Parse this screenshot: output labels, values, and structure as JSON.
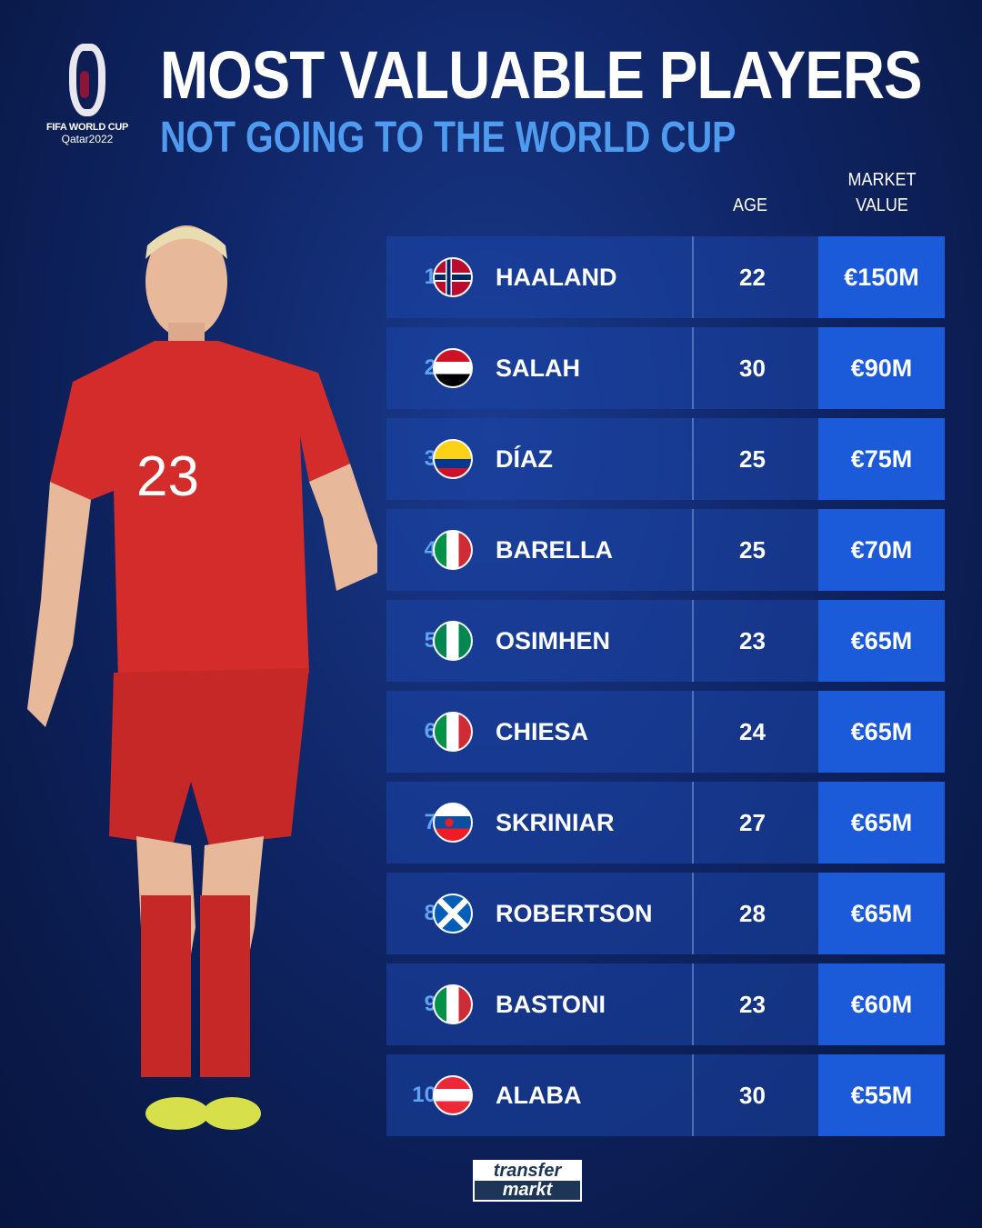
{
  "logo": {
    "line1": "FIFA WORLD CUP",
    "line2": "Qatar2022"
  },
  "title": "MOST VALUABLE PLAYERS",
  "subtitle": "NOT GOING TO THE WORLD CUP",
  "headers": {
    "age": "AGE",
    "market_value_1": "MARKET",
    "market_value_2": "VALUE"
  },
  "rows": [
    {
      "rank": "1",
      "flag": "norway-flag-icon",
      "name": "HAALAND",
      "age": "22",
      "value": "€150M"
    },
    {
      "rank": "2",
      "flag": "egypt-flag-icon",
      "name": "SALAH",
      "age": "30",
      "value": "€90M"
    },
    {
      "rank": "3",
      "flag": "colombia-flag-icon",
      "name": "DÍAZ",
      "age": "25",
      "value": "€75M"
    },
    {
      "rank": "4",
      "flag": "italy-flag-icon",
      "name": "BARELLA",
      "age": "25",
      "value": "€70M"
    },
    {
      "rank": "5",
      "flag": "nigeria-flag-icon",
      "name": "OSIMHEN",
      "age": "23",
      "value": "€65M"
    },
    {
      "rank": "6",
      "flag": "italy-flag-icon",
      "name": "CHIESA",
      "age": "24",
      "value": "€65M"
    },
    {
      "rank": "7",
      "flag": "slovakia-flag-icon",
      "name": "SKRINIAR",
      "age": "27",
      "value": "€65M"
    },
    {
      "rank": "8",
      "flag": "scotland-flag-icon",
      "name": "ROBERTSON",
      "age": "28",
      "value": "€65M"
    },
    {
      "rank": "9",
      "flag": "italy-flag-icon",
      "name": "BASTONI",
      "age": "23",
      "value": "€60M"
    },
    {
      "rank": "10",
      "flag": "austria-flag-icon",
      "name": "ALABA",
      "age": "30",
      "value": "€55M"
    }
  ],
  "player_shirt_number": "23",
  "footer_logo": {
    "line1": "transfer",
    "line2": "markt"
  },
  "colors": {
    "accent": "#4f9bf0",
    "value_box": "#1b5ad8",
    "row": "#1c46aa",
    "shirt": "#d42b2b"
  }
}
